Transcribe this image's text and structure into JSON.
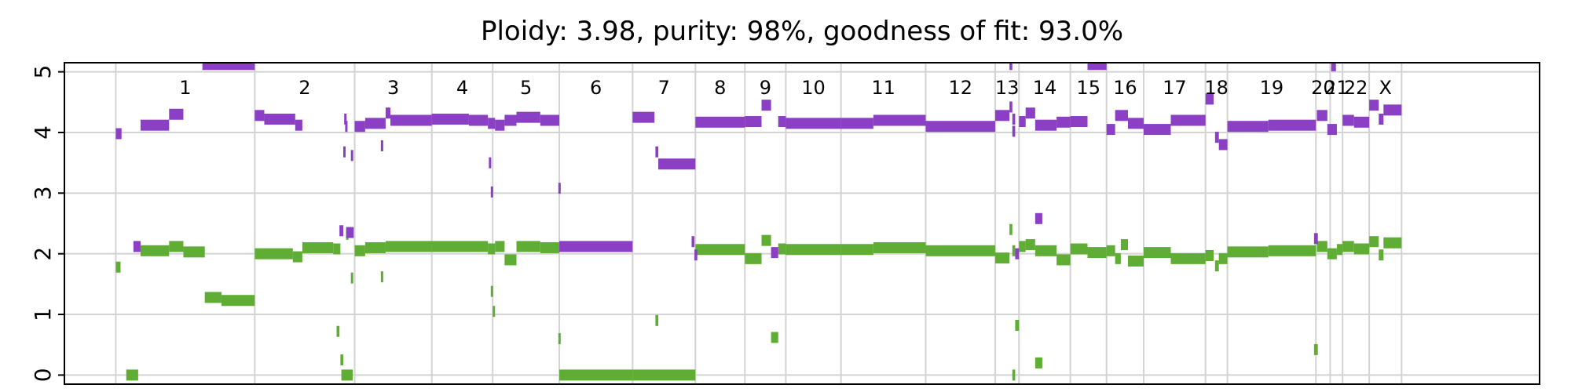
{
  "chart_data": {
    "type": "segment-plot",
    "title": "Ploidy: 3.98, purity: 98%, goodness of fit: 93.0%",
    "xlabel": "",
    "ylabel": "",
    "ylim": [
      -0.15,
      5.15
    ],
    "yticks": [
      0,
      1,
      2,
      3,
      4,
      5
    ],
    "xlim": [
      0,
      31
    ],
    "grid": true,
    "colors": {
      "major": "#8B3FC4",
      "minor": "#5FAD35",
      "grid": "#d3d3d3",
      "axis": "#000000"
    },
    "chromosomes": [
      {
        "name": "1",
        "start": 1.08,
        "end": 4.0
      },
      {
        "name": "2",
        "start": 4.0,
        "end": 6.1
      },
      {
        "name": "3",
        "start": 6.1,
        "end": 7.72
      },
      {
        "name": "4",
        "start": 7.72,
        "end": 9.0
      },
      {
        "name": "5",
        "start": 9.0,
        "end": 10.4
      },
      {
        "name": "6",
        "start": 10.4,
        "end": 11.94
      },
      {
        "name": "7",
        "start": 11.94,
        "end": 13.26
      },
      {
        "name": "8",
        "start": 13.26,
        "end": 14.3
      },
      {
        "name": "9",
        "start": 14.3,
        "end": 15.16
      },
      {
        "name": "10",
        "start": 15.16,
        "end": 16.32
      },
      {
        "name": "11",
        "start": 16.32,
        "end": 18.1
      },
      {
        "name": "12",
        "start": 18.1,
        "end": 19.56
      },
      {
        "name": "13",
        "start": 19.56,
        "end": 20.06
      },
      {
        "name": "14",
        "start": 20.06,
        "end": 21.14
      },
      {
        "name": "15",
        "start": 21.14,
        "end": 21.9
      },
      {
        "name": "16",
        "start": 21.9,
        "end": 22.68
      },
      {
        "name": "17",
        "start": 22.68,
        "end": 23.98
      },
      {
        "name": "18",
        "start": 23.98,
        "end": 24.44
      },
      {
        "name": "19",
        "start": 24.44,
        "end": 26.3
      },
      {
        "name": "20",
        "start": 26.3,
        "end": 26.6
      },
      {
        "name": "21",
        "start": 26.6,
        "end": 26.86
      },
      {
        "name": "22",
        "start": 26.86,
        "end": 27.42
      },
      {
        "name": "X",
        "start": 27.42,
        "end": 28.1
      }
    ],
    "series": [
      {
        "name": "major",
        "segments": [
          [
            1.08,
            1.2,
            3.98
          ],
          [
            1.45,
            1.6,
            2.12
          ],
          [
            1.6,
            2.2,
            4.12
          ],
          [
            2.2,
            2.5,
            4.3
          ],
          [
            2.9,
            4.0,
            5.12
          ],
          [
            4.0,
            4.2,
            4.28
          ],
          [
            4.2,
            4.85,
            4.22
          ],
          [
            4.85,
            5.0,
            4.12
          ],
          [
            5.78,
            5.86,
            2.38
          ],
          [
            5.88,
            5.92,
            4.22
          ],
          [
            5.9,
            5.94,
            4.1
          ],
          [
            5.86,
            5.9,
            3.68
          ],
          [
            5.92,
            6.08,
            2.35
          ],
          [
            6.02,
            6.06,
            3.62
          ],
          [
            6.1,
            6.32,
            4.1
          ],
          [
            6.32,
            6.75,
            4.15
          ],
          [
            6.65,
            6.7,
            3.78
          ],
          [
            6.75,
            6.85,
            4.32
          ],
          [
            6.85,
            7.72,
            4.2
          ],
          [
            7.72,
            8.5,
            4.22
          ],
          [
            8.5,
            8.9,
            4.2
          ],
          [
            8.9,
            9.05,
            4.15
          ],
          [
            8.92,
            8.96,
            3.5
          ],
          [
            8.96,
            9.0,
            3.02
          ],
          [
            9.05,
            9.25,
            4.12
          ],
          [
            9.25,
            9.5,
            4.2
          ],
          [
            9.5,
            10.0,
            4.25
          ],
          [
            10.0,
            10.4,
            4.2
          ],
          [
            10.38,
            10.42,
            3.08
          ],
          [
            10.4,
            11.94,
            2.12
          ],
          [
            11.94,
            12.4,
            4.25
          ],
          [
            12.42,
            12.48,
            3.68
          ],
          [
            12.48,
            13.26,
            3.48
          ],
          [
            13.18,
            13.24,
            2.2
          ],
          [
            13.24,
            13.3,
            1.98
          ],
          [
            13.26,
            14.3,
            4.17
          ],
          [
            14.3,
            14.65,
            4.18
          ],
          [
            14.65,
            14.85,
            4.45
          ],
          [
            14.85,
            15.0,
            2.02
          ],
          [
            15.0,
            15.16,
            4.18
          ],
          [
            15.16,
            16.32,
            4.15
          ],
          [
            16.32,
            17.0,
            4.15
          ],
          [
            17.0,
            18.1,
            4.2
          ],
          [
            18.1,
            19.56,
            4.1
          ],
          [
            19.56,
            19.86,
            4.28
          ],
          [
            19.86,
            19.92,
            5.12
          ],
          [
            19.86,
            19.92,
            4.42
          ],
          [
            19.92,
            19.98,
            4.22
          ],
          [
            19.92,
            19.98,
            4.02
          ],
          [
            19.98,
            20.06,
            2.0
          ],
          [
            20.06,
            20.2,
            4.18
          ],
          [
            20.2,
            20.4,
            4.32
          ],
          [
            20.4,
            20.55,
            2.58
          ],
          [
            20.4,
            20.85,
            4.12
          ],
          [
            20.85,
            21.14,
            4.17
          ],
          [
            21.14,
            21.5,
            4.18
          ],
          [
            21.5,
            21.9,
            5.12
          ],
          [
            21.9,
            22.08,
            4.05
          ],
          [
            22.08,
            22.35,
            4.28
          ],
          [
            22.35,
            22.68,
            4.15
          ],
          [
            22.68,
            23.25,
            4.05
          ],
          [
            23.25,
            23.98,
            4.2
          ],
          [
            23.98,
            24.15,
            4.55
          ],
          [
            24.18,
            24.26,
            3.92
          ],
          [
            24.26,
            24.44,
            3.8
          ],
          [
            24.44,
            25.3,
            4.1
          ],
          [
            25.3,
            26.3,
            4.12
          ],
          [
            26.26,
            26.34,
            2.25
          ],
          [
            26.32,
            26.54,
            4.28
          ],
          [
            26.54,
            26.74,
            4.05
          ],
          [
            26.62,
            26.72,
            5.1
          ],
          [
            26.86,
            27.1,
            4.2
          ],
          [
            27.1,
            27.42,
            4.17
          ],
          [
            27.42,
            27.62,
            4.45
          ],
          [
            27.62,
            27.72,
            4.22
          ],
          [
            27.72,
            28.1,
            4.37
          ]
        ]
      },
      {
        "name": "minor",
        "segments": [
          [
            1.08,
            1.18,
            1.78
          ],
          [
            1.3,
            1.55,
            0.0
          ],
          [
            1.6,
            2.2,
            2.05
          ],
          [
            2.2,
            2.5,
            2.12
          ],
          [
            2.5,
            2.95,
            2.03
          ],
          [
            2.95,
            3.3,
            1.28
          ],
          [
            3.3,
            4.0,
            1.23
          ],
          [
            4.0,
            4.8,
            2.0
          ],
          [
            4.8,
            5.0,
            1.95
          ],
          [
            5.0,
            5.65,
            2.1
          ],
          [
            5.65,
            5.8,
            2.08
          ],
          [
            5.72,
            5.78,
            0.72
          ],
          [
            5.8,
            5.86,
            0.25
          ],
          [
            5.86,
            6.06,
            0.0
          ],
          [
            5.82,
            5.86,
            0.0
          ],
          [
            5.92,
            5.96,
            2.32
          ],
          [
            6.02,
            6.06,
            1.6
          ],
          [
            6.1,
            6.32,
            2.05
          ],
          [
            6.32,
            6.75,
            2.1
          ],
          [
            6.65,
            6.7,
            1.62
          ],
          [
            6.75,
            7.72,
            2.12
          ],
          [
            7.72,
            8.9,
            2.12
          ],
          [
            8.9,
            9.05,
            2.08
          ],
          [
            8.96,
            9.0,
            1.38
          ],
          [
            9.0,
            9.04,
            1.05
          ],
          [
            9.05,
            9.25,
            2.12
          ],
          [
            9.25,
            9.5,
            1.9
          ],
          [
            9.5,
            10.0,
            2.12
          ],
          [
            10.0,
            10.4,
            2.1
          ],
          [
            10.38,
            10.42,
            0.6
          ],
          [
            10.4,
            11.94,
            0.0
          ],
          [
            11.94,
            13.26,
            0.0
          ],
          [
            12.42,
            12.48,
            0.9
          ],
          [
            13.26,
            14.3,
            2.07
          ],
          [
            14.3,
            14.65,
            1.92
          ],
          [
            14.65,
            14.85,
            2.22
          ],
          [
            14.85,
            15.0,
            0.62
          ],
          [
            15.0,
            15.16,
            2.08
          ],
          [
            15.16,
            16.32,
            2.07
          ],
          [
            16.32,
            17.0,
            2.07
          ],
          [
            17.0,
            18.1,
            2.1
          ],
          [
            18.1,
            19.56,
            2.05
          ],
          [
            19.56,
            19.86,
            1.93
          ],
          [
            19.86,
            19.92,
            2.4
          ],
          [
            19.92,
            19.98,
            2.05
          ],
          [
            19.92,
            19.98,
            0.0
          ],
          [
            19.98,
            20.06,
            0.82
          ],
          [
            20.06,
            20.2,
            2.12
          ],
          [
            20.2,
            20.4,
            2.15
          ],
          [
            20.4,
            20.55,
            0.2
          ],
          [
            20.4,
            20.85,
            2.05
          ],
          [
            20.85,
            21.14,
            1.9
          ],
          [
            21.14,
            21.5,
            2.08
          ],
          [
            21.5,
            21.9,
            2.02
          ],
          [
            21.9,
            22.08,
            2.05
          ],
          [
            22.08,
            22.2,
            1.92
          ],
          [
            22.2,
            22.35,
            2.15
          ],
          [
            22.35,
            22.68,
            1.88
          ],
          [
            22.68,
            23.25,
            2.02
          ],
          [
            23.25,
            23.98,
            1.92
          ],
          [
            23.98,
            24.15,
            1.97
          ],
          [
            24.18,
            24.26,
            1.8
          ],
          [
            24.26,
            24.44,
            1.92
          ],
          [
            24.44,
            25.3,
            2.03
          ],
          [
            25.3,
            26.3,
            2.05
          ],
          [
            26.26,
            26.34,
            0.42
          ],
          [
            26.32,
            26.54,
            2.12
          ],
          [
            26.54,
            26.74,
            2.0
          ],
          [
            26.74,
            26.86,
            2.07
          ],
          [
            26.86,
            27.1,
            2.12
          ],
          [
            27.1,
            27.42,
            2.08
          ],
          [
            27.42,
            27.62,
            2.2
          ],
          [
            27.62,
            27.72,
            1.98
          ],
          [
            27.72,
            28.1,
            2.18
          ]
        ]
      }
    ]
  }
}
